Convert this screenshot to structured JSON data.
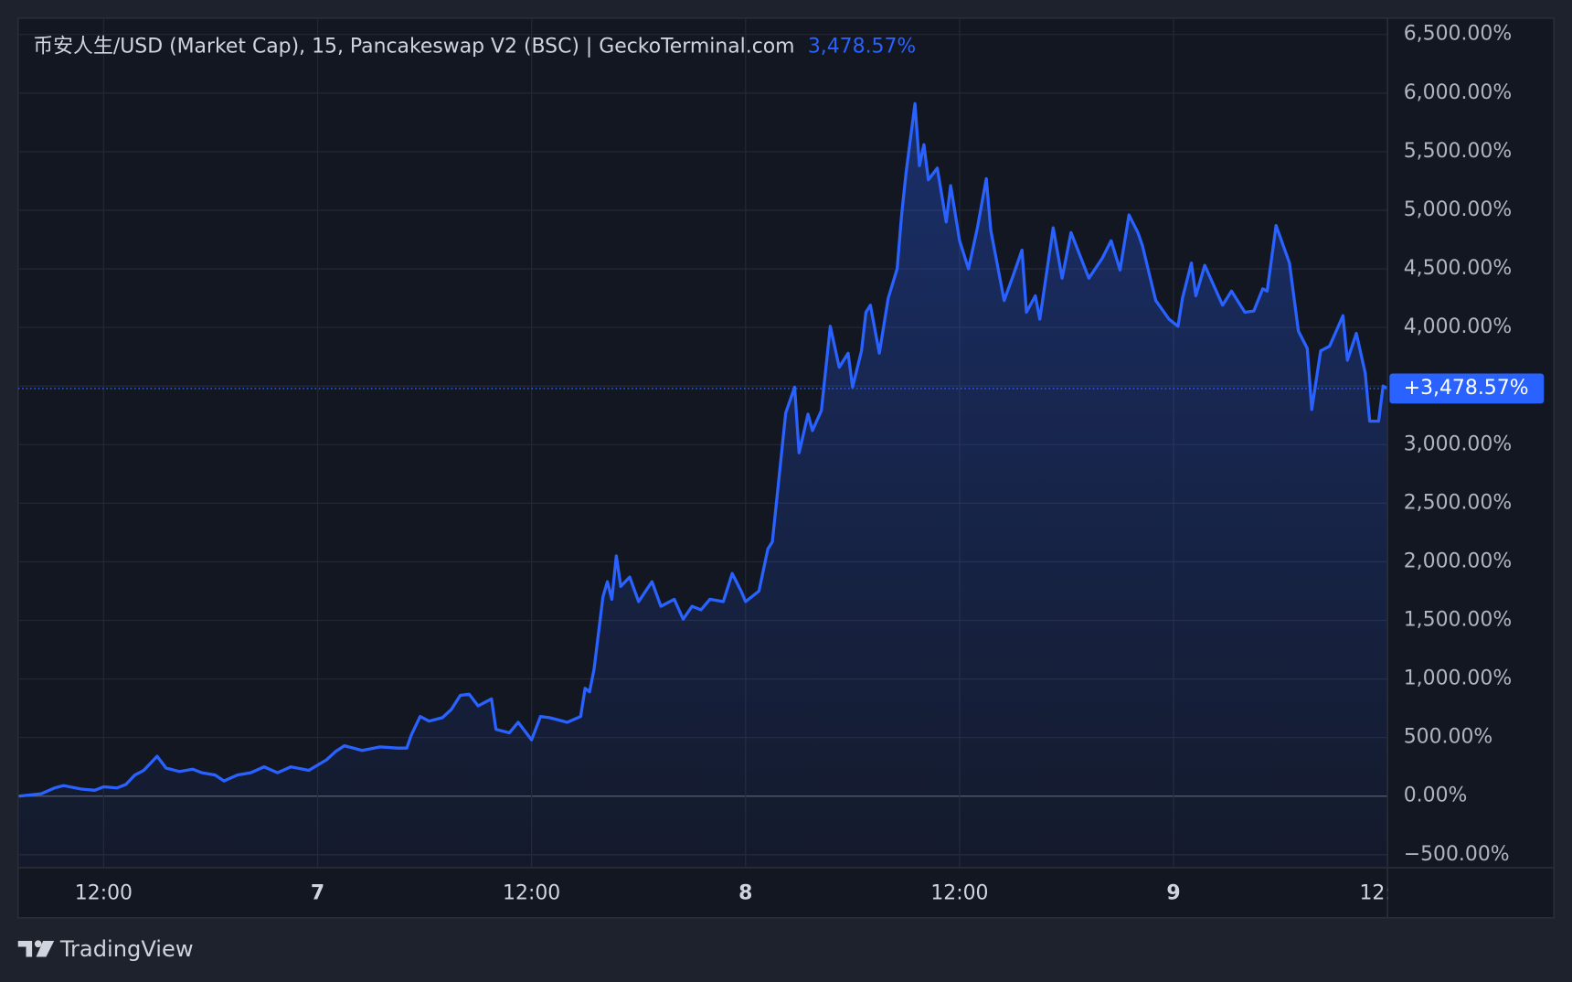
{
  "chart_data": {
    "type": "line",
    "title": "币安人生/USD (Market Cap), 15, Pancakeswap V2 (BSC) | GeckoTerminal.com",
    "last_value_label": "3,478.57%",
    "price_tag": "+3,478.57%",
    "footer": "TradingView",
    "color": "#2962ff",
    "grid": true,
    "xlim": [
      7.2,
      84
    ],
    "ylim": [
      -610,
      6640
    ],
    "xticks": [
      {
        "value": 12,
        "label": "12:00"
      },
      {
        "value": 24,
        "label": "7"
      },
      {
        "value": 36,
        "label": "12:00"
      },
      {
        "value": 48,
        "label": "8"
      },
      {
        "value": 60,
        "label": "12:00"
      },
      {
        "value": 72,
        "label": "9"
      },
      {
        "value": 84,
        "label": "12:"
      }
    ],
    "yticks": [
      {
        "value": -500,
        "label": "−500.00%"
      },
      {
        "value": 0,
        "label": "0.00%"
      },
      {
        "value": 500,
        "label": "500.00%"
      },
      {
        "value": 1000,
        "label": "1,000.00%"
      },
      {
        "value": 1500,
        "label": "1,500.00%"
      },
      {
        "value": 2000,
        "label": "2,000.00%"
      },
      {
        "value": 2500,
        "label": "2,500.00%"
      },
      {
        "value": 3000,
        "label": "3,000.00%"
      },
      {
        "value": 3500,
        "label": "3,500.00%"
      },
      {
        "value": 4000,
        "label": "4,000.00%"
      },
      {
        "value": 4500,
        "label": "4,500.00%"
      },
      {
        "value": 5000,
        "label": "5,000.00%"
      },
      {
        "value": 5500,
        "label": "5,500.00%"
      },
      {
        "value": 6000,
        "label": "6,000.00%"
      },
      {
        "value": 6500,
        "label": "6,500.00%"
      }
    ],
    "x": [
      7.25,
      8.5,
      9.25,
      9.75,
      10.75,
      11.5,
      12,
      12.75,
      13.25,
      13.75,
      14.25,
      15,
      15.5,
      16.25,
      17,
      17.5,
      18.25,
      18.75,
      19.5,
      20.25,
      21,
      21.75,
      22.5,
      23.5,
      24.5,
      25,
      25.5,
      26.5,
      27.5,
      28.5,
      29,
      29.25,
      29.75,
      30.25,
      31,
      31.5,
      32,
      32.5,
      33,
      33.75,
      34,
      34.75,
      35.25,
      36,
      36.5,
      37,
      38,
      38.75,
      39,
      39.25,
      39.5,
      40,
      40.25,
      40.5,
      40.75,
      41,
      41.5,
      42,
      42.75,
      43.25,
      44,
      44.5,
      45,
      45.5,
      46,
      46.75,
      47.25,
      47.75,
      48,
      48.75,
      49.25,
      49.5,
      50,
      50.25,
      50.75,
      51,
      51.5,
      51.75,
      52.25,
      52.75,
      53.25,
      53.75,
      54,
      54.5,
      54.75,
      55,
      55.5,
      56,
      56.5,
      56.75,
      57,
      57.5,
      57.75,
      58,
      58.25,
      58.75,
      59.25,
      59.5,
      60,
      60.5,
      61,
      61.5,
      61.75,
      62.5,
      63,
      63.5,
      63.75,
      64.25,
      64.5,
      65.25,
      65.75,
      66.25,
      67.25,
      68,
      68.5,
      69,
      69.5,
      70,
      70.25,
      71,
      71.75,
      72.25,
      72.5,
      73,
      73.25,
      73.75,
      74.25,
      74.75,
      75.25,
      76,
      76.5,
      77,
      77.25,
      77.75,
      78.5,
      79,
      79.5,
      79.75,
      80.25,
      80.75,
      81.5,
      81.75,
      82.25,
      82.75,
      83,
      83.5,
      83.75,
      84
    ],
    "values": [
      0,
      20,
      70,
      90,
      60,
      50,
      80,
      70,
      100,
      180,
      220,
      340,
      240,
      210,
      230,
      200,
      180,
      130,
      180,
      200,
      250,
      200,
      250,
      220,
      310,
      380,
      430,
      390,
      420,
      410,
      410,
      520,
      680,
      640,
      670,
      740,
      860,
      870,
      770,
      830,
      570,
      540,
      630,
      480,
      680,
      670,
      630,
      680,
      920,
      890,
      1080,
      1700,
      1830,
      1680,
      2050,
      1790,
      1870,
      1660,
      1830,
      1620,
      1680,
      1510,
      1620,
      1590,
      1680,
      1660,
      1900,
      1750,
      1660,
      1750,
      2110,
      2170,
      2900,
      3270,
      3490,
      2930,
      3260,
      3120,
      3290,
      4010,
      3660,
      3780,
      3490,
      3800,
      4130,
      4190,
      3780,
      4250,
      4500,
      4960,
      5320,
      5910,
      5380,
      5560,
      5260,
      5360,
      4900,
      5210,
      4740,
      4500,
      4850,
      5270,
      4830,
      4230,
      4440,
      4660,
      4130,
      4270,
      4070,
      4850,
      4420,
      4810,
      4420,
      4590,
      4740,
      4490,
      4960,
      4810,
      4700,
      4230,
      4070,
      4010,
      4250,
      4550,
      4270,
      4530,
      4360,
      4190,
      4310,
      4130,
      4140,
      4330,
      4310,
      4870,
      4550,
      3970,
      3820,
      3300,
      3800,
      3840,
      4100,
      3720,
      3950,
      3610,
      3200,
      3200,
      3500,
      3478.57
    ]
  }
}
